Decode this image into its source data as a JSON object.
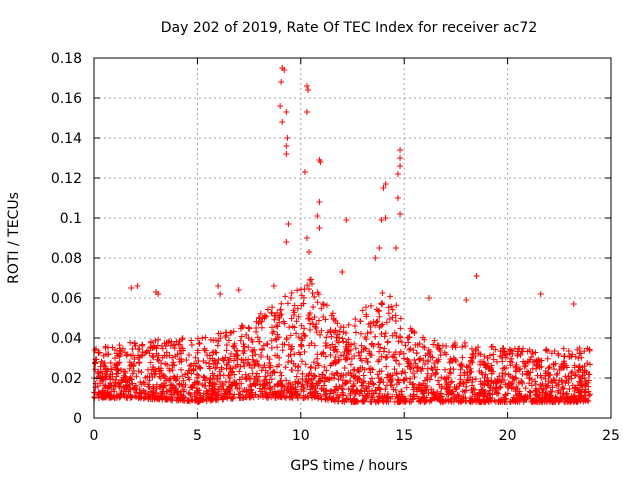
{
  "chart_data": {
    "type": "scatter",
    "title": "Day 202 of 2019, Rate Of TEC Index for receiver ac72",
    "xlabel": "GPS time / hours",
    "ylabel": "ROTI / TECUs",
    "xlim": [
      0,
      25
    ],
    "ylim": [
      0,
      0.18
    ],
    "x_ticks": [
      0,
      5,
      10,
      15,
      20,
      25
    ],
    "x_tick_labels": [
      "0",
      "5",
      "10",
      "15",
      "20",
      "25"
    ],
    "y_ticks": [
      0,
      0.02,
      0.04,
      0.06,
      0.08,
      0.1,
      0.12,
      0.14,
      0.16,
      0.18
    ],
    "y_tick_labels": [
      "0",
      "0.02",
      "0.04",
      "0.06",
      "0.08",
      "0.1",
      "0.12",
      "0.14",
      "0.16",
      "0.18"
    ],
    "grid": true,
    "marker": "+",
    "color": "#ff0000",
    "series": [
      {
        "name": "ROTI",
        "description": "dense band of samples, mostly 0.01–0.04 TECU/min from 0 to 24 h, with elevated activity 9–11 h and 13.5–15 h",
        "baseline_envelope": [
          {
            "x": 0,
            "low": 0.01,
            "high": 0.035
          },
          {
            "x": 2,
            "low": 0.01,
            "high": 0.04
          },
          {
            "x": 5,
            "low": 0.008,
            "high": 0.04
          },
          {
            "x": 7,
            "low": 0.01,
            "high": 0.045
          },
          {
            "x": 9,
            "low": 0.01,
            "high": 0.06
          },
          {
            "x": 10.5,
            "low": 0.01,
            "high": 0.07
          },
          {
            "x": 12,
            "low": 0.008,
            "high": 0.045
          },
          {
            "x": 14,
            "low": 0.008,
            "high": 0.065
          },
          {
            "x": 16,
            "low": 0.008,
            "high": 0.04
          },
          {
            "x": 20,
            "low": 0.008,
            "high": 0.035
          },
          {
            "x": 24,
            "low": 0.008,
            "high": 0.035
          }
        ],
        "peaks": [
          {
            "x": 9.1,
            "y": 0.175
          },
          {
            "x": 9.2,
            "y": 0.174
          },
          {
            "x": 9.05,
            "y": 0.168
          },
          {
            "x": 9.0,
            "y": 0.156
          },
          {
            "x": 9.3,
            "y": 0.153
          },
          {
            "x": 9.1,
            "y": 0.148
          },
          {
            "x": 9.35,
            "y": 0.14
          },
          {
            "x": 9.3,
            "y": 0.136
          },
          {
            "x": 9.3,
            "y": 0.132
          },
          {
            "x": 9.4,
            "y": 0.097
          },
          {
            "x": 9.3,
            "y": 0.088
          },
          {
            "x": 10.3,
            "y": 0.166
          },
          {
            "x": 10.35,
            "y": 0.164
          },
          {
            "x": 10.3,
            "y": 0.153
          },
          {
            "x": 10.2,
            "y": 0.123
          },
          {
            "x": 10.3,
            "y": 0.09
          },
          {
            "x": 10.4,
            "y": 0.083
          },
          {
            "x": 10.9,
            "y": 0.129
          },
          {
            "x": 10.95,
            "y": 0.128
          },
          {
            "x": 10.9,
            "y": 0.108
          },
          {
            "x": 10.8,
            "y": 0.101
          },
          {
            "x": 10.9,
            "y": 0.095
          },
          {
            "x": 12.2,
            "y": 0.099
          },
          {
            "x": 13.9,
            "y": 0.099
          },
          {
            "x": 14.1,
            "y": 0.1
          },
          {
            "x": 14.0,
            "y": 0.115
          },
          {
            "x": 14.1,
            "y": 0.117
          },
          {
            "x": 14.8,
            "y": 0.134
          },
          {
            "x": 14.8,
            "y": 0.13
          },
          {
            "x": 14.8,
            "y": 0.126
          },
          {
            "x": 14.7,
            "y": 0.122
          },
          {
            "x": 14.7,
            "y": 0.11
          },
          {
            "x": 14.8,
            "y": 0.102
          },
          {
            "x": 14.6,
            "y": 0.085
          },
          {
            "x": 13.8,
            "y": 0.085
          },
          {
            "x": 18.5,
            "y": 0.071
          },
          {
            "x": 3.0,
            "y": 0.063
          },
          {
            "x": 3.1,
            "y": 0.062
          },
          {
            "x": 6.0,
            "y": 0.066
          },
          {
            "x": 6.1,
            "y": 0.062
          },
          {
            "x": 7.0,
            "y": 0.064
          },
          {
            "x": 21.6,
            "y": 0.062
          },
          {
            "x": 1.8,
            "y": 0.065
          },
          {
            "x": 2.1,
            "y": 0.066
          },
          {
            "x": 18.0,
            "y": 0.059
          },
          {
            "x": 8.7,
            "y": 0.066
          },
          {
            "x": 12.0,
            "y": 0.073
          },
          {
            "x": 13.6,
            "y": 0.08
          },
          {
            "x": 23.2,
            "y": 0.057
          },
          {
            "x": 16.2,
            "y": 0.06
          }
        ]
      }
    ]
  }
}
